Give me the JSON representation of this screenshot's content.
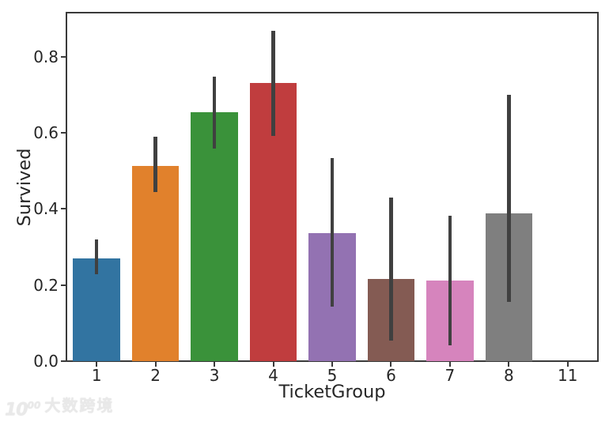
{
  "watermark": {
    "logo_main": "10",
    "logo_sup": "00",
    "text": "大数跨境"
  },
  "chart_data": {
    "type": "bar",
    "title": "",
    "xlabel": "TicketGroup",
    "ylabel": "Survived",
    "categories": [
      "1",
      "2",
      "3",
      "4",
      "5",
      "6",
      "7",
      "8",
      "11"
    ],
    "values": [
      0.271,
      0.514,
      0.655,
      0.731,
      0.336,
      0.216,
      0.211,
      0.388,
      0
    ],
    "ci_low": [
      0.229,
      0.445,
      0.558,
      0.592,
      0.143,
      0.055,
      0.042,
      0.155,
      null
    ],
    "ci_high": [
      0.319,
      0.589,
      0.748,
      0.868,
      0.533,
      0.429,
      0.382,
      0.701,
      null
    ],
    "bar_colors": [
      "#3274a1",
      "#e1812c",
      "#3a923a",
      "#c03d3e",
      "#9372b2",
      "#845b53",
      "#d684bd",
      "#7f7f7f",
      "#a9aa35"
    ],
    "error_bar_color": "#404040",
    "spine_color": "#3a3a3a",
    "ylim": [
      0,
      0.914
    ],
    "yticks": [
      0.0,
      0.2,
      0.4,
      0.6,
      0.8
    ],
    "bar_width_fraction": 0.8,
    "grid": false,
    "legend": null
  }
}
